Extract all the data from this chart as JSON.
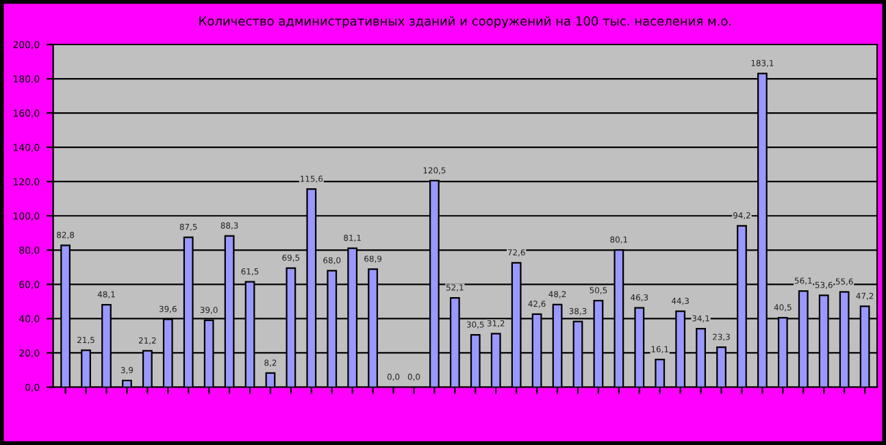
{
  "chart_data": {
    "type": "bar",
    "title": "Количество административных зданий и сооружений на 100 тыс. населения м.о.",
    "categories": [
      null,
      null,
      null,
      null,
      null,
      null,
      null,
      null,
      null,
      null,
      null,
      null,
      null,
      null,
      null,
      null,
      null,
      null,
      null,
      null,
      null,
      null,
      null,
      null,
      null,
      null,
      null,
      null,
      null,
      null,
      null,
      null,
      null,
      null,
      null,
      null,
      null,
      null,
      null,
      null
    ],
    "values": [
      82.8,
      21.5,
      48.1,
      3.9,
      21.2,
      39.6,
      87.5,
      39.0,
      88.3,
      61.5,
      8.2,
      69.5,
      115.6,
      68.0,
      81.1,
      68.9,
      0.0,
      0.0,
      120.5,
      52.1,
      30.5,
      31.2,
      72.6,
      42.6,
      48.2,
      38.3,
      50.5,
      80.1,
      46.3,
      16.1,
      44.3,
      34.1,
      23.3,
      94.2,
      183.1,
      40.5,
      56.1,
      53.6,
      55.6,
      47.2
    ],
    "value_labels": [
      "82,8",
      "21,5",
      "48,1",
      "3,9",
      "21,2",
      "39,6",
      "87,5",
      "39,0",
      "88,3",
      "61,5",
      "8,2",
      "69,5",
      "115,6",
      "68,0",
      "81,1",
      "68,9",
      "0,0",
      "0,0",
      "120,5",
      "52,1",
      "30,5",
      "31,2",
      "72,6",
      "42,6",
      "48,2",
      "38,3",
      "50,5",
      "80,1",
      "46,3",
      "16,1",
      "44,3",
      "34,1",
      "23,3",
      "94,2",
      "183,1",
      "40,5",
      "56,1",
      "53,6",
      "55,6",
      "47,2"
    ],
    "color": "#9999ff",
    "ylim": [
      0,
      200
    ],
    "yticks": [
      {
        "value": 0,
        "label": "0,0"
      },
      {
        "value": 20,
        "label": "20,0"
      },
      {
        "value": 40,
        "label": "40,0"
      },
      {
        "value": 60,
        "label": "60,0"
      },
      {
        "value": 80,
        "label": "80,0"
      },
      {
        "value": 100,
        "label": "100,0"
      },
      {
        "value": 120,
        "label": "120,0"
      },
      {
        "value": 140,
        "label": "140,0"
      },
      {
        "value": 160,
        "label": "160,0"
      },
      {
        "value": 180,
        "label": "180,0"
      },
      {
        "value": 200,
        "label": "200,0"
      }
    ],
    "grid": "y"
  }
}
